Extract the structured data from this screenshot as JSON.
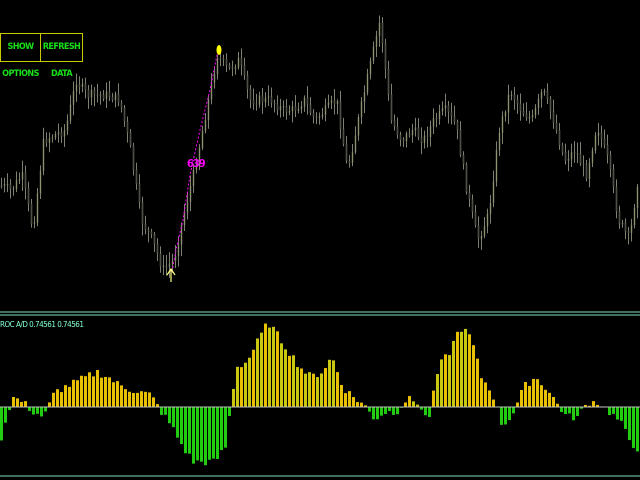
{
  "toolbar": {
    "show_options_label": "SHOW OPTIONS",
    "refresh_data_label": "REFRESH DATA"
  },
  "indicator": {
    "label": "ROC A/D 0.74561 0.74561"
  },
  "signal": {
    "label": "639",
    "arrow": "up-arrow-icon",
    "dot": "yellow-dot-icon"
  },
  "colors": {
    "background": "#000000",
    "candle": "#808070",
    "bull_bar": "#e8c000",
    "bull_bar_alt": "#c8c810",
    "bear_bar": "#22cc11",
    "separator": "#7fe0c0",
    "signal": "#ff00ff",
    "button_border": "#c8c800",
    "button_text": "#19e019"
  },
  "chart_data": [
    {
      "type": "candlestick",
      "price_path_relative": [
        115,
        110,
        125,
        70,
        160,
        165,
        170,
        220,
        205,
        205,
        205,
        200,
        150,
        80,
        60,
        30,
        40,
        90,
        135,
        190,
        245,
        230,
        240,
        200,
        200,
        200,
        190,
        190,
        200,
        180,
        190,
        200,
        130,
        180,
        230,
        280,
        180,
        160,
        170,
        160,
        180,
        190,
        175,
        110,
        60,
        85,
        170,
        210,
        190,
        180,
        210,
        180,
        140,
        150,
        125,
        175,
        140,
        80,
        60,
        140
      ]
    },
    {
      "type": "bar",
      "values": [
        -30,
        10,
        5,
        -5,
        -10,
        15,
        20,
        25,
        30,
        35,
        30,
        22,
        18,
        15,
        12,
        -5,
        -20,
        -40,
        -55,
        -55,
        -55,
        -40,
        40,
        45,
        65,
        85,
        70,
        55,
        40,
        30,
        35,
        50,
        20,
        10,
        2,
        -12,
        -5,
        -5,
        8,
        5,
        -15,
        40,
        55,
        80,
        70,
        30,
        15,
        -20,
        -5,
        20,
        30,
        20,
        5,
        -10,
        -10,
        5,
        5,
        -5,
        -15,
        -35,
        -45
      ],
      "zero_line": 0
    }
  ]
}
